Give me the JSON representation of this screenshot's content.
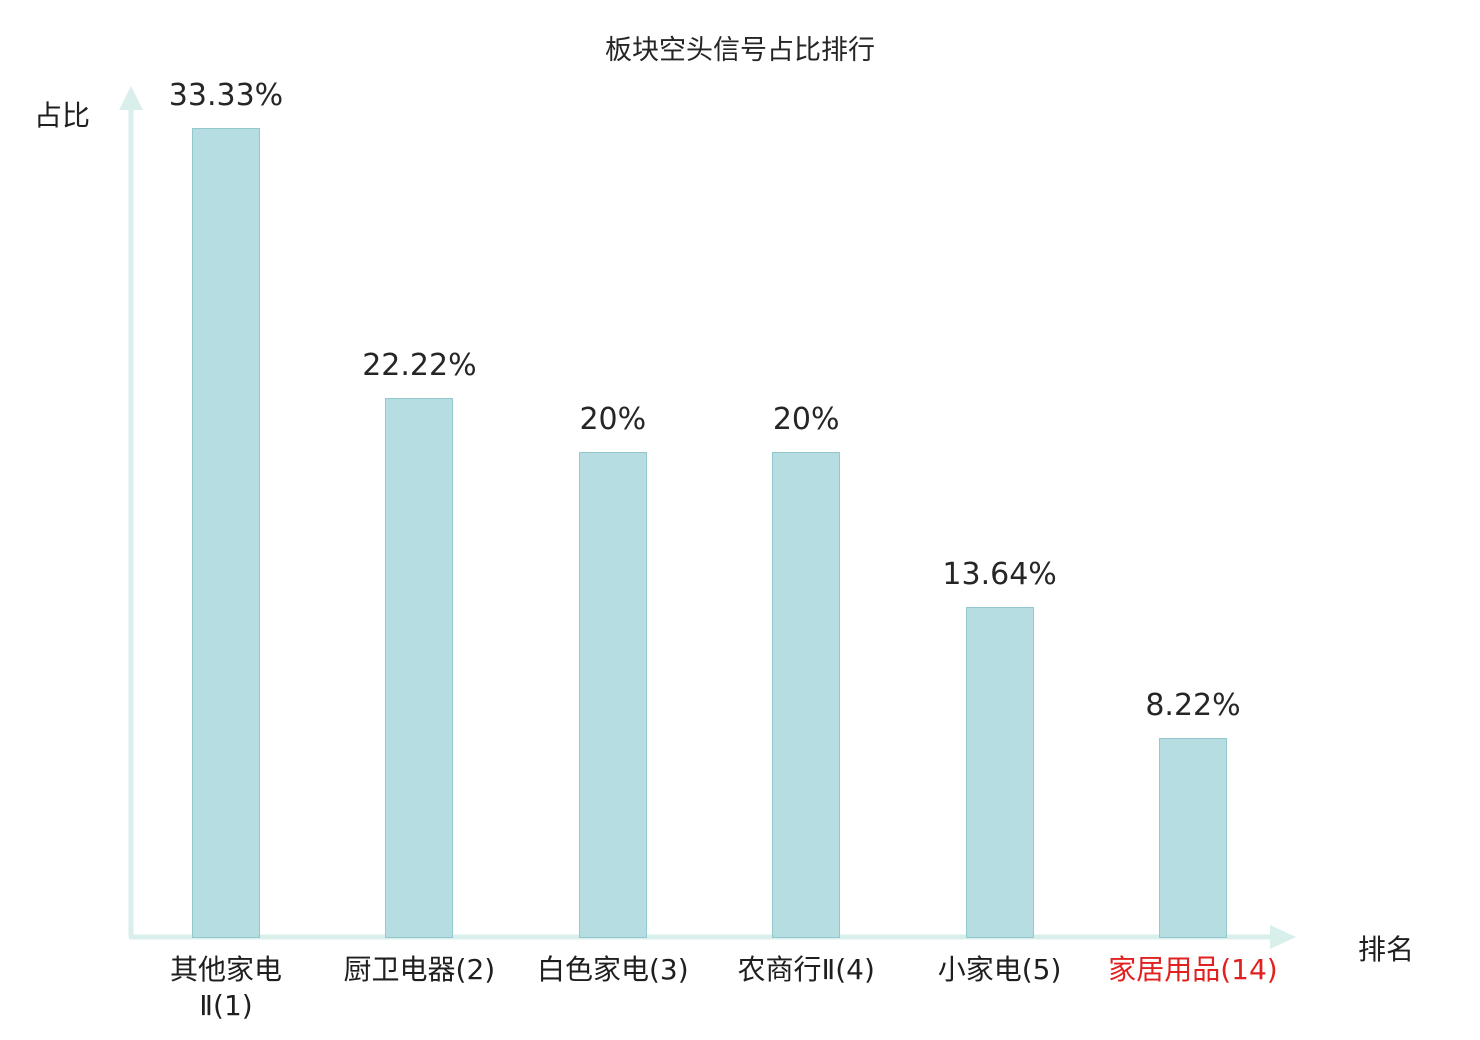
{
  "chart_data": {
    "type": "bar",
    "title": "板块空头信号占比排行",
    "ylabel": "占比",
    "xlabel": "排名",
    "categories": [
      "其他家电\nⅡ(1)",
      "厨卫电器(2)",
      "白色家电(3)",
      "农商行Ⅱ(4)",
      "小家电(5)",
      "家居用品(14)"
    ],
    "values": [
      33.33,
      22.22,
      20,
      20,
      13.64,
      8.22
    ],
    "value_labels": [
      "33.33%",
      "22.22%",
      "20%",
      "20%",
      "13.64%",
      "8.22%"
    ],
    "highlight_index": 5,
    "ylim": [
      0,
      35
    ],
    "grid": false,
    "legend": "none",
    "bar_color": "#b6dde2",
    "bar_border_color": "#93c8ce",
    "axis_color": "#d9efec",
    "text_color": "#262626",
    "highlight_color": "#e0211f"
  }
}
